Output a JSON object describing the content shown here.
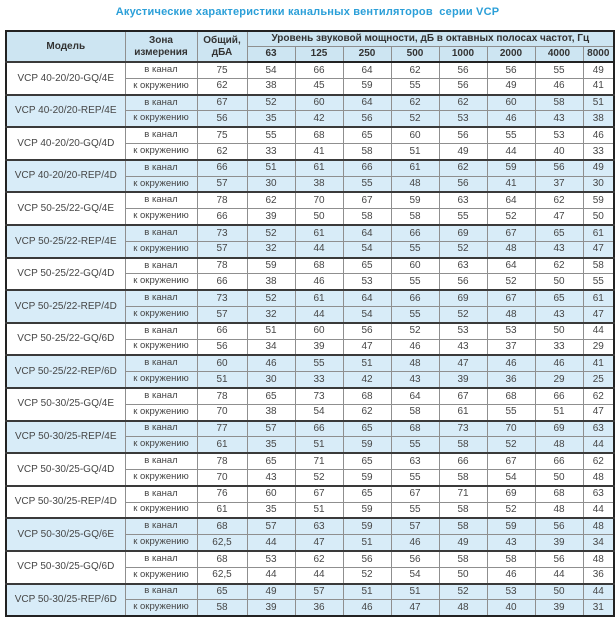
{
  "title": "Акустические характеристики канальных вентиляторов  серии VCP",
  "colors": {
    "title_color": "#2b9fd8",
    "header_bg": "#cde5f2",
    "stripe_bg": "#d8ecf8",
    "grid_line": "#8f8f8f",
    "heavy_line": "#222222",
    "cell_text": "#464646"
  },
  "table": {
    "headers": {
      "model": "Модель",
      "zone": "Зона измерения",
      "total": "Общий, дБА",
      "spl": "Уровень звуковой мощности, дБ в октавных полосах частот, Гц",
      "frequencies": [
        "63",
        "125",
        "250",
        "500",
        "1000",
        "2000",
        "4000",
        "8000"
      ]
    },
    "models": [
      {
        "name": "VCP 40-20/20-GQ/4E",
        "shaded": false,
        "rows": [
          {
            "zone": "в канал",
            "dba": "75",
            "levels": [
              "54",
              "66",
              "64",
              "62",
              "56",
              "56",
              "55",
              "49"
            ]
          },
          {
            "zone": "к окружению",
            "dba": "62",
            "levels": [
              "38",
              "45",
              "59",
              "55",
              "56",
              "49",
              "46",
              "41"
            ]
          }
        ]
      },
      {
        "name": "VCP 40-20/20-REP/4E",
        "shaded": true,
        "rows": [
          {
            "zone": "в канал",
            "dba": "67",
            "levels": [
              "52",
              "60",
              "64",
              "62",
              "62",
              "60",
              "58",
              "51"
            ]
          },
          {
            "zone": "к окружению",
            "dba": "56",
            "levels": [
              "35",
              "42",
              "56",
              "52",
              "53",
              "46",
              "43",
              "38"
            ]
          }
        ]
      },
      {
        "name": "VCP 40-20/20-GQ/4D",
        "shaded": false,
        "rows": [
          {
            "zone": "в канал",
            "dba": "75",
            "levels": [
              "55",
              "68",
              "65",
              "60",
              "56",
              "55",
              "53",
              "46"
            ]
          },
          {
            "zone": "к окружению",
            "dba": "62",
            "levels": [
              "33",
              "41",
              "58",
              "51",
              "49",
              "44",
              "40",
              "33"
            ]
          }
        ]
      },
      {
        "name": "VCP 40-20/20-REP/4D",
        "shaded": true,
        "rows": [
          {
            "zone": "в канал",
            "dba": "66",
            "levels": [
              "51",
              "61",
              "66",
              "61",
              "62",
              "59",
              "56",
              "49"
            ]
          },
          {
            "zone": "к окружению",
            "dba": "57",
            "levels": [
              "30",
              "38",
              "55",
              "48",
              "56",
              "41",
              "37",
              "30"
            ]
          }
        ]
      },
      {
        "name": "VCP 50-25/22-GQ/4E",
        "shaded": false,
        "rows": [
          {
            "zone": "в канал",
            "dba": "78",
            "levels": [
              "62",
              "70",
              "67",
              "59",
              "63",
              "64",
              "62",
              "59"
            ]
          },
          {
            "zone": "к окружению",
            "dba": "66",
            "levels": [
              "39",
              "50",
              "58",
              "58",
              "55",
              "52",
              "47",
              "50"
            ]
          }
        ]
      },
      {
        "name": "VCP 50-25/22-REP/4E",
        "shaded": true,
        "rows": [
          {
            "zone": "в канал",
            "dba": "73",
            "levels": [
              "52",
              "61",
              "64",
              "66",
              "69",
              "67",
              "65",
              "61"
            ]
          },
          {
            "zone": "к окружению",
            "dba": "57",
            "levels": [
              "32",
              "44",
              "54",
              "55",
              "52",
              "48",
              "43",
              "47"
            ]
          }
        ]
      },
      {
        "name": "VCP 50-25/22-GQ/4D",
        "shaded": false,
        "rows": [
          {
            "zone": "в канал",
            "dba": "78",
            "levels": [
              "59",
              "68",
              "65",
              "60",
              "63",
              "64",
              "62",
              "58"
            ]
          },
          {
            "zone": "к окружению",
            "dba": "66",
            "levels": [
              "38",
              "46",
              "53",
              "55",
              "56",
              "52",
              "50",
              "55"
            ]
          }
        ]
      },
      {
        "name": "VCP 50-25/22-REP/4D",
        "shaded": true,
        "rows": [
          {
            "zone": "в канал",
            "dba": "73",
            "levels": [
              "52",
              "61",
              "64",
              "66",
              "69",
              "67",
              "65",
              "61"
            ]
          },
          {
            "zone": "к окружению",
            "dba": "57",
            "levels": [
              "32",
              "44",
              "54",
              "55",
              "52",
              "48",
              "43",
              "47"
            ]
          }
        ]
      },
      {
        "name": "VCP 50-25/22-GQ/6D",
        "shaded": false,
        "rows": [
          {
            "zone": "в канал",
            "dba": "66",
            "levels": [
              "51",
              "60",
              "56",
              "52",
              "53",
              "53",
              "50",
              "44"
            ]
          },
          {
            "zone": "к окружению",
            "dba": "56",
            "levels": [
              "34",
              "39",
              "47",
              "46",
              "43",
              "37",
              "33",
              "29"
            ]
          }
        ]
      },
      {
        "name": "VCP 50-25/22-REP/6D",
        "shaded": true,
        "rows": [
          {
            "zone": "в канал",
            "dba": "60",
            "levels": [
              "46",
              "55",
              "51",
              "48",
              "47",
              "46",
              "46",
              "41"
            ]
          },
          {
            "zone": "к окружению",
            "dba": "51",
            "levels": [
              "30",
              "33",
              "42",
              "43",
              "39",
              "36",
              "29",
              "25"
            ]
          }
        ]
      },
      {
        "name": "VCP 50-30/25-GQ/4E",
        "shaded": false,
        "rows": [
          {
            "zone": "в канал",
            "dba": "78",
            "levels": [
              "65",
              "73",
              "68",
              "64",
              "67",
              "68",
              "66",
              "62"
            ]
          },
          {
            "zone": "к окружению",
            "dba": "70",
            "levels": [
              "38",
              "54",
              "62",
              "58",
              "61",
              "55",
              "51",
              "47"
            ]
          }
        ]
      },
      {
        "name": "VCP 50-30/25-REP/4E",
        "shaded": true,
        "rows": [
          {
            "zone": "в канал",
            "dba": "77",
            "levels": [
              "57",
              "66",
              "65",
              "68",
              "73",
              "70",
              "69",
              "63"
            ]
          },
          {
            "zone": "к окружению",
            "dba": "61",
            "levels": [
              "35",
              "51",
              "59",
              "55",
              "58",
              "52",
              "48",
              "44"
            ]
          }
        ]
      },
      {
        "name": "VCP 50-30/25-GQ/4D",
        "shaded": false,
        "rows": [
          {
            "zone": "в канал",
            "dba": "78",
            "levels": [
              "65",
              "71",
              "65",
              "63",
              "66",
              "67",
              "66",
              "62"
            ]
          },
          {
            "zone": "к окружению",
            "dba": "70",
            "levels": [
              "43",
              "52",
              "59",
              "55",
              "58",
              "54",
              "50",
              "48"
            ]
          }
        ]
      },
      {
        "name": "VCP 50-30/25-REP/4D",
        "shaded": false,
        "rows": [
          {
            "zone": "в канал",
            "dba": "76",
            "levels": [
              "60",
              "67",
              "65",
              "67",
              "71",
              "69",
              "68",
              "63"
            ]
          },
          {
            "zone": "к окружению",
            "dba": "61",
            "levels": [
              "35",
              "51",
              "59",
              "55",
              "58",
              "52",
              "48",
              "44"
            ]
          }
        ]
      },
      {
        "name": "VCP 50-30/25-GQ/6E",
        "shaded": true,
        "rows": [
          {
            "zone": "в канал",
            "dba": "68",
            "levels": [
              "57",
              "63",
              "59",
              "57",
              "58",
              "59",
              "56",
              "48"
            ]
          },
          {
            "zone": "к окружению",
            "dba": "62,5",
            "levels": [
              "44",
              "47",
              "51",
              "46",
              "49",
              "43",
              "39",
              "34"
            ]
          }
        ]
      },
      {
        "name": "VCP 50-30/25-GQ/6D",
        "shaded": false,
        "rows": [
          {
            "zone": "в канал",
            "dba": "68",
            "levels": [
              "53",
              "62",
              "56",
              "56",
              "58",
              "58",
              "56",
              "48"
            ]
          },
          {
            "zone": "к окружению",
            "dba": "62,5",
            "levels": [
              "44",
              "44",
              "52",
              "54",
              "50",
              "46",
              "44",
              "36"
            ]
          }
        ]
      },
      {
        "name": "VCP 50-30/25-REP/6D",
        "shaded": true,
        "rows": [
          {
            "zone": "в канал",
            "dba": "65",
            "levels": [
              "49",
              "57",
              "51",
              "51",
              "52",
              "53",
              "50",
              "44"
            ]
          },
          {
            "zone": "к окружению",
            "dba": "58",
            "levels": [
              "39",
              "36",
              "46",
              "47",
              "48",
              "40",
              "39",
              "31"
            ]
          }
        ]
      }
    ]
  }
}
